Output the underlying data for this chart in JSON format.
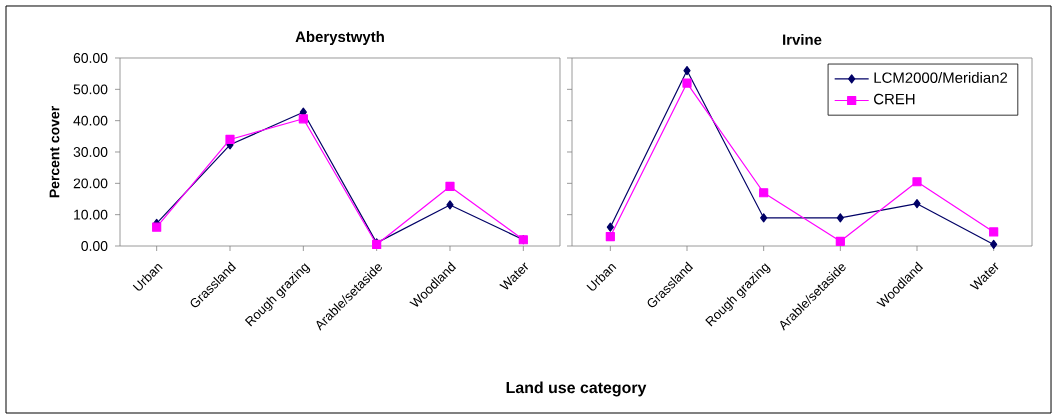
{
  "chart_data": [
    {
      "type": "line",
      "title": "Aberystwyth",
      "xlabel": "Land use category",
      "ylabel": "Percent cover",
      "categories": [
        "Urban",
        "Grassland",
        "Rough grazing",
        "Arable/setaside",
        "Woodland",
        "Water"
      ],
      "series": [
        {
          "color": "#000066",
          "marker": "diamond",
          "values": [
            7.2,
            32.3,
            42.7,
            1,
            13.1,
            2
          ]
        },
        {
          "color": "#ff00ff",
          "marker": "square",
          "values": [
            6,
            34,
            40.6,
            0.5,
            19,
            2
          ]
        }
      ],
      "ylim": [
        0,
        60
      ],
      "yticks": [
        {
          "value": 0,
          "label": "0.00"
        },
        {
          "value": 10,
          "label": "10.00"
        },
        {
          "value": 20,
          "label": "20.00"
        },
        {
          "value": 30,
          "label": "30.00"
        },
        {
          "value": 40,
          "label": "40.00"
        },
        {
          "value": 50,
          "label": "50.00"
        },
        {
          "value": 60,
          "label": "60.00"
        }
      ],
      "legend": false
    },
    {
      "type": "line",
      "title": "Irvine",
      "categories": [
        "Urban",
        "Grassland",
        "Rough grazing",
        "Arable/setaside",
        "Woodland",
        "Water"
      ],
      "series": [
        {
          "name": "LCM2000/Meridian2",
          "color": "#000066",
          "marker": "diamond",
          "values": [
            6,
            56,
            9,
            9,
            13.5,
            0.5
          ]
        },
        {
          "name": "CREH",
          "color": "#ff00ff",
          "marker": "square",
          "values": [
            3,
            52,
            17,
            1.5,
            20.5,
            4.5
          ]
        }
      ],
      "ylim": [
        0,
        60
      ],
      "yticks": [
        0,
        10,
        20,
        30,
        40,
        50,
        60
      ],
      "tick_labels": "x",
      "legend": "top right"
    }
  ]
}
